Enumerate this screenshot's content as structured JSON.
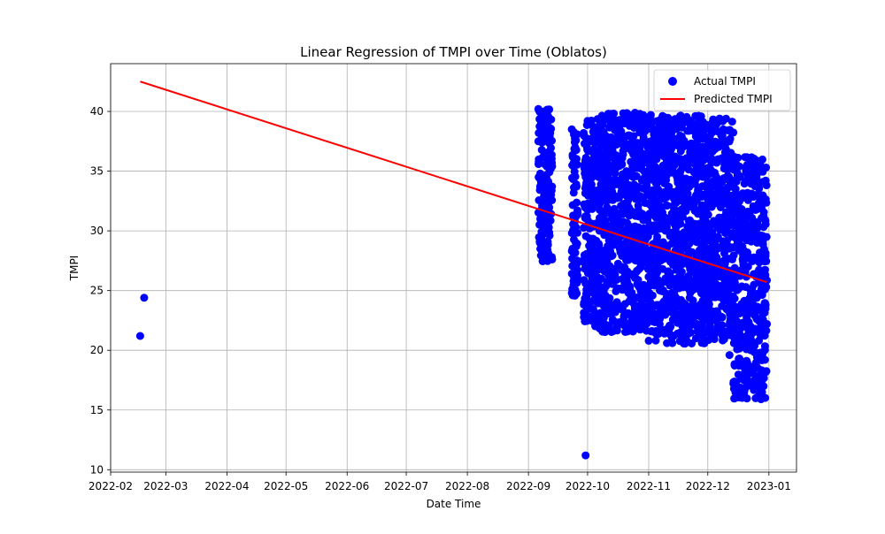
{
  "chart_data": {
    "type": "scatter",
    "title": "Linear Regression of TMPI over Time (Oblatos)",
    "xlabel": "Date Time",
    "ylabel": "TMPI",
    "x_axis": "date",
    "xlim": [
      "2022-02-01",
      "2023-01-15"
    ],
    "ylim": [
      9.8,
      44
    ],
    "x_ticks": [
      "2022-02",
      "2022-03",
      "2022-04",
      "2022-05",
      "2022-06",
      "2022-07",
      "2022-08",
      "2022-09",
      "2022-10",
      "2022-11",
      "2022-12",
      "2023-01"
    ],
    "y_ticks": [
      10,
      15,
      20,
      25,
      30,
      35,
      40
    ],
    "grid": true,
    "legend_position": "top-right",
    "colors": {
      "actual": "#0000ff",
      "predicted": "#ff0000"
    },
    "series": [
      {
        "name": "Actual TMPI",
        "kind": "scatter",
        "points": [
          [
            "2022-02-16",
            21.2
          ],
          [
            "2022-02-18",
            24.4
          ],
          [
            "2022-09-30",
            11.2
          ],
          [
            "2022-09-06",
            40.2
          ],
          [
            "2022-09-06",
            37.5
          ],
          [
            "2022-09-07",
            34.8
          ],
          [
            "2022-09-07",
            31.0
          ],
          [
            "2022-09-08",
            28.2
          ],
          [
            "2022-09-08",
            29.6
          ],
          [
            "2022-09-09",
            36.2
          ],
          [
            "2022-09-10",
            33.0
          ],
          [
            "2022-09-11",
            30.4
          ],
          [
            "2022-09-12",
            38.6
          ],
          [
            "2022-09-13",
            27.6
          ],
          [
            "2022-09-13",
            35.4
          ],
          [
            "2022-09-23",
            24.8
          ],
          [
            "2022-09-23",
            38.5
          ],
          [
            "2022-09-24",
            26.4
          ],
          [
            "2022-09-24",
            33.2
          ],
          [
            "2022-09-25",
            29.0
          ],
          [
            "2022-09-25",
            36.8
          ],
          [
            "2022-09-26",
            31.5
          ],
          [
            "2022-09-29",
            38.2
          ],
          [
            "2022-09-30",
            34.5
          ],
          [
            "2022-09-30",
            25.6
          ],
          [
            "2022-10-01",
            39.2
          ],
          [
            "2022-10-02",
            30.2
          ],
          [
            "2022-10-03",
            23.5
          ],
          [
            "2022-10-04",
            35.0
          ],
          [
            "2022-10-05",
            27.8
          ],
          [
            "2022-10-06",
            22.0
          ],
          [
            "2022-10-07",
            31.8
          ],
          [
            "2022-10-08",
            26.0
          ],
          [
            "2022-10-09",
            37.4
          ],
          [
            "2022-10-10",
            24.6
          ],
          [
            "2022-10-11",
            33.6
          ],
          [
            "2022-10-12",
            28.6
          ],
          [
            "2022-10-13",
            39.8
          ],
          [
            "2022-10-14",
            21.6
          ],
          [
            "2022-10-15",
            30.8
          ],
          [
            "2022-10-16",
            25.2
          ],
          [
            "2022-10-17",
            34.2
          ],
          [
            "2022-10-18",
            27.0
          ],
          [
            "2022-10-19",
            36.4
          ],
          [
            "2022-10-20",
            23.0
          ],
          [
            "2022-10-21",
            32.4
          ],
          [
            "2022-10-22",
            29.4
          ],
          [
            "2022-10-23",
            39.6
          ],
          [
            "2022-10-24",
            24.0
          ],
          [
            "2022-10-25",
            35.6
          ],
          [
            "2022-10-26",
            26.6
          ],
          [
            "2022-10-27",
            31.2
          ],
          [
            "2022-10-28",
            38.4
          ],
          [
            "2022-10-29",
            22.6
          ],
          [
            "2022-10-30",
            28.0
          ],
          [
            "2022-10-31",
            33.8
          ],
          [
            "2022-11-01",
            20.8
          ],
          [
            "2022-11-02",
            39.4
          ],
          [
            "2022-11-03",
            25.8
          ],
          [
            "2022-11-04",
            30.0
          ],
          [
            "2022-11-05",
            36.0
          ],
          [
            "2022-11-06",
            23.8
          ],
          [
            "2022-11-07",
            28.8
          ],
          [
            "2022-11-08",
            37.8
          ],
          [
            "2022-11-09",
            21.4
          ],
          [
            "2022-11-10",
            32.8
          ],
          [
            "2022-11-11",
            26.2
          ],
          [
            "2022-11-12",
            35.2
          ],
          [
            "2022-11-13",
            20.6
          ],
          [
            "2022-11-14",
            29.8
          ],
          [
            "2022-11-15",
            37.2
          ],
          [
            "2022-11-16",
            24.2
          ],
          [
            "2022-11-17",
            31.6
          ],
          [
            "2022-11-18",
            27.2
          ],
          [
            "2022-11-19",
            34.0
          ],
          [
            "2022-11-20",
            22.4
          ],
          [
            "2022-11-21",
            28.4
          ],
          [
            "2022-11-22",
            36.6
          ],
          [
            "2022-11-23",
            25.4
          ],
          [
            "2022-11-24",
            30.6
          ],
          [
            "2022-11-25",
            21.0
          ],
          [
            "2022-11-26",
            33.4
          ],
          [
            "2022-11-27",
            26.8
          ],
          [
            "2022-11-28",
            38.0
          ],
          [
            "2022-11-29",
            23.2
          ],
          [
            "2022-11-30",
            29.2
          ],
          [
            "2022-12-01",
            37.0
          ],
          [
            "2022-12-02",
            24.8
          ],
          [
            "2022-12-03",
            32.0
          ],
          [
            "2022-12-04",
            21.2
          ],
          [
            "2022-12-05",
            35.8
          ],
          [
            "2022-12-06",
            27.4
          ],
          [
            "2022-12-07",
            39.4
          ],
          [
            "2022-12-08",
            22.8
          ],
          [
            "2022-12-09",
            30.4
          ],
          [
            "2022-12-10",
            25.0
          ],
          [
            "2022-12-11",
            34.6
          ],
          [
            "2022-12-12",
            19.6
          ],
          [
            "2022-12-13",
            28.6
          ],
          [
            "2022-12-14",
            17.2
          ],
          [
            "2022-12-15",
            32.6
          ],
          [
            "2022-12-16",
            23.6
          ],
          [
            "2022-12-17",
            35.4
          ],
          [
            "2022-12-18",
            16.6
          ],
          [
            "2022-12-19",
            27.6
          ],
          [
            "2022-12-20",
            20.4
          ],
          [
            "2022-12-21",
            31.4
          ],
          [
            "2022-12-22",
            18.4
          ],
          [
            "2022-12-23",
            36.0
          ],
          [
            "2022-12-24",
            24.4
          ],
          [
            "2022-12-25",
            21.8
          ],
          [
            "2022-12-26",
            29.0
          ],
          [
            "2022-12-27",
            17.8
          ],
          [
            "2022-12-28",
            15.9
          ],
          [
            "2022-12-29",
            26.4
          ],
          [
            "2022-12-30",
            19.2
          ],
          [
            "2022-12-31",
            22.2
          ]
        ]
      },
      {
        "name": "Predicted TMPI",
        "kind": "line",
        "points": [
          [
            "2022-02-16",
            42.5
          ],
          [
            "2022-12-31",
            25.7
          ]
        ]
      }
    ],
    "cloud_regions": [
      {
        "x_range": [
          "2022-09-06",
          "2022-09-13"
        ],
        "y_range": [
          27.4,
          40.2
        ]
      },
      {
        "x_range": [
          "2022-09-23",
          "2022-09-26"
        ],
        "y_range": [
          24.5,
          38.6
        ]
      },
      {
        "x_range": [
          "2022-09-29",
          "2022-10-07"
        ],
        "y_range": [
          22.0,
          39.4
        ]
      },
      {
        "x_range": [
          "2022-10-07",
          "2022-11-03"
        ],
        "y_range": [
          21.5,
          39.9
        ]
      },
      {
        "x_range": [
          "2022-11-03",
          "2022-11-30"
        ],
        "y_range": [
          20.5,
          39.7
        ]
      },
      {
        "x_range": [
          "2022-11-30",
          "2022-12-14"
        ],
        "y_range": [
          20.8,
          39.4
        ]
      },
      {
        "x_range": [
          "2022-12-14",
          "2022-12-31"
        ],
        "y_range": [
          15.9,
          36.2
        ]
      }
    ]
  }
}
